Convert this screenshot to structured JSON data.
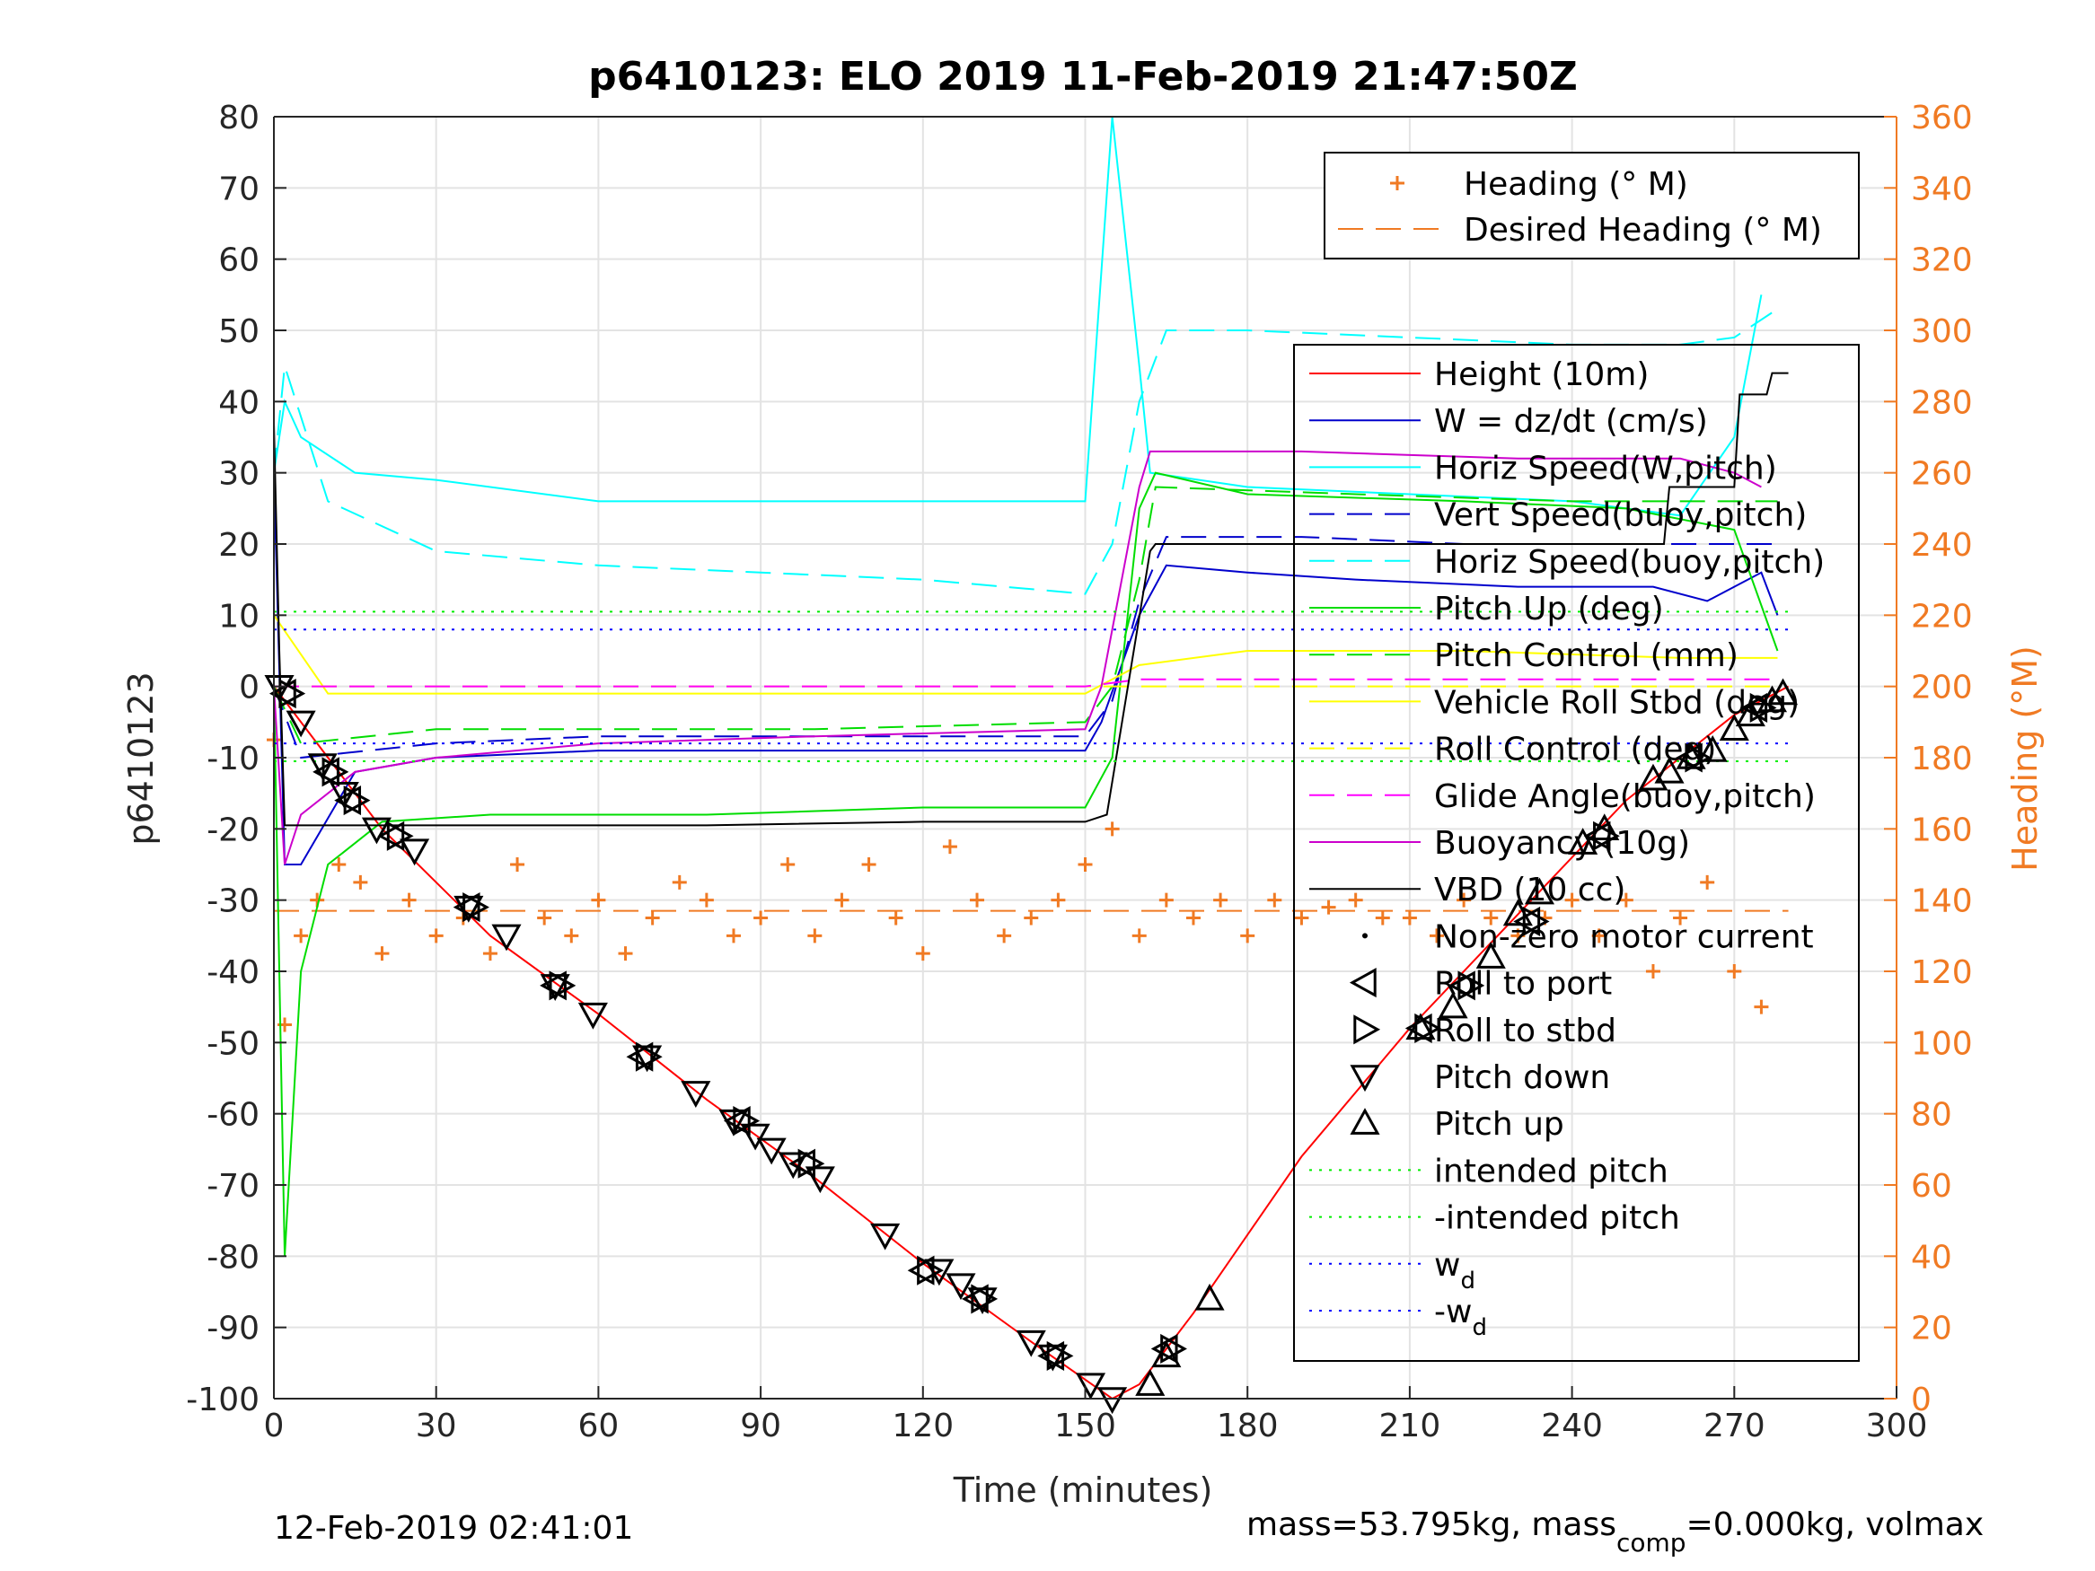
{
  "chart_data": {
    "type": "line",
    "title": "p6410123: ELO 2019 11-Feb-2019 21:47:50Z",
    "xlabel": "Time (minutes)",
    "ylabel": "p6410123",
    "y2label": "Heading (°M)",
    "xlim": [
      0,
      300
    ],
    "ylim": [
      -100,
      80
    ],
    "y2lim": [
      0,
      360
    ],
    "xticks": [
      "0",
      "30",
      "60",
      "90",
      "120",
      "150",
      "180",
      "210",
      "240",
      "270",
      "300"
    ],
    "yticks": [
      "-100",
      "-90",
      "-80",
      "-70",
      "-60",
      "-50",
      "-40",
      "-30",
      "-20",
      "-10",
      "0",
      "10",
      "20",
      "30",
      "40",
      "50",
      "60",
      "70",
      "80"
    ],
    "y2ticks": [
      "0",
      "20",
      "40",
      "60",
      "80",
      "100",
      "120",
      "140",
      "160",
      "180",
      "200",
      "220",
      "240",
      "260",
      "280",
      "300",
      "320",
      "340",
      "360"
    ],
    "grid": true,
    "colors": {
      "height": "#ff0000",
      "w": "#0000cc",
      "horiz_speed": "#00ffff",
      "pitch": "#00dd00",
      "roll": "#ffff00",
      "glide": "#ff00ff",
      "buoyancy": "#cc00cc",
      "vbd": "#000000",
      "heading": "#f07a23",
      "intended_pitch": "#00ee00",
      "wd": "#0000ff"
    },
    "series": [
      {
        "name": "Height (10m)",
        "x": [
          0,
          20,
          40,
          60,
          80,
          100,
          120,
          140,
          155,
          160,
          170,
          190,
          210,
          230,
          250,
          270,
          280
        ],
        "y": [
          0,
          -20,
          -35,
          -46,
          -58,
          -69,
          -81,
          -92,
          -100,
          -98,
          -88,
          -66,
          -48,
          -32,
          -16,
          -4,
          0
        ]
      },
      {
        "name": "W = dz/dt (cm/s)",
        "x": [
          0,
          2,
          5,
          15,
          30,
          60,
          90,
          120,
          150,
          153,
          160,
          165,
          180,
          200,
          230,
          255,
          265,
          275,
          278
        ],
        "y": [
          30,
          -25,
          -25,
          -12,
          -10,
          -9,
          -9,
          -9,
          -9,
          -5,
          10,
          17,
          16,
          15,
          14,
          14,
          12,
          16,
          10
        ]
      },
      {
        "name": "Horiz Speed(W,pitch)",
        "x": [
          0,
          2,
          5,
          15,
          30,
          60,
          90,
          120,
          150,
          155,
          160,
          162,
          180,
          210,
          240,
          260,
          270,
          275
        ],
        "y": [
          30,
          40,
          35,
          30,
          29,
          26,
          26,
          26,
          26,
          80,
          45,
          30,
          28,
          27,
          26,
          24,
          35,
          55
        ]
      },
      {
        "name": "Vert Speed(buoy,pitch)",
        "x": [
          0,
          5,
          30,
          60,
          90,
          120,
          150,
          155,
          160,
          165,
          190,
          220,
          250,
          270,
          278
        ],
        "y": [
          0,
          -10,
          -8,
          -7,
          -7,
          -7,
          -7,
          -2,
          12,
          21,
          21,
          20,
          20,
          20,
          20
        ]
      },
      {
        "name": "Horiz Speed(buoy,pitch)",
        "x": [
          0,
          2,
          10,
          30,
          60,
          90,
          120,
          150,
          155,
          160,
          165,
          180,
          210,
          240,
          260,
          270,
          278
        ],
        "y": [
          30,
          45,
          26,
          19,
          17,
          16,
          15,
          13,
          20,
          40,
          50,
          50,
          49,
          48,
          48,
          49,
          53
        ]
      },
      {
        "name": "Pitch Up (deg)",
        "x": [
          0,
          2,
          5,
          10,
          20,
          40,
          80,
          120,
          150,
          155,
          160,
          163,
          180,
          220,
          250,
          270,
          278
        ],
        "y": [
          0,
          -80,
          -40,
          -25,
          -19,
          -18,
          -18,
          -17,
          -17,
          -10,
          25,
          30,
          27,
          26,
          25,
          22,
          5
        ]
      },
      {
        "name": "Pitch Control (mm)",
        "x": [
          0,
          5,
          30,
          60,
          100,
          150,
          155,
          160,
          163,
          200,
          240,
          270,
          278
        ],
        "y": [
          0,
          -8,
          -6,
          -6,
          -6,
          -5,
          0,
          15,
          28,
          27,
          26,
          26,
          26
        ]
      },
      {
        "name": "Vehicle Roll Stbd (deg)",
        "x": [
          0,
          10,
          50,
          100,
          150,
          160,
          180,
          220,
          260,
          278
        ],
        "y": [
          10,
          -1,
          -1,
          -1,
          -1,
          3,
          5,
          5,
          4,
          4
        ]
      },
      {
        "name": "Roll Control (deg)",
        "x": [
          0,
          278
        ],
        "y": [
          0,
          0
        ]
      },
      {
        "name": "Glide Angle(buoy,pitch)",
        "x": [
          0,
          5,
          50,
          100,
          150,
          160,
          200,
          250,
          278
        ],
        "y": [
          0,
          0,
          0,
          0,
          0,
          1,
          1,
          1,
          1
        ]
      },
      {
        "name": "Buoyancy (10g)",
        "x": [
          0,
          2,
          5,
          15,
          30,
          60,
          100,
          150,
          153,
          160,
          162,
          190,
          230,
          260,
          270,
          275
        ],
        "y": [
          0,
          -25,
          -18,
          -12,
          -10,
          -8,
          -7,
          -6,
          0,
          28,
          33,
          33,
          32,
          32,
          30,
          28
        ]
      },
      {
        "name": "VBD (10 cc)",
        "x": [
          0,
          1,
          2,
          40,
          80,
          120,
          150,
          154,
          162,
          163,
          200,
          240,
          257,
          258,
          270,
          271,
          276,
          277,
          280
        ],
        "y": [
          37,
          5,
          -19.5,
          -19.5,
          -19.5,
          -19,
          -19,
          -18,
          19,
          20,
          20,
          20,
          20,
          28,
          28,
          41,
          41,
          44,
          44
        ]
      },
      {
        "name": "Non-zero motor current",
        "x": [],
        "y": []
      },
      {
        "name": "Roll to port",
        "x": [
          2,
          10,
          14,
          22,
          36,
          52,
          68,
          86,
          98,
          120,
          130,
          144,
          165,
          212,
          220,
          232,
          245,
          262,
          274
        ],
        "y": [
          -1,
          -12,
          -16,
          -21,
          -31,
          -42,
          -52,
          -61,
          -67,
          -82,
          -86,
          -94,
          -93,
          -48,
          -42,
          -33,
          -21,
          -10,
          -3
        ]
      },
      {
        "name": "Roll to stbd",
        "x": [
          3,
          11,
          15,
          23,
          37,
          53,
          69,
          87,
          99,
          121,
          131,
          145,
          166,
          213,
          221,
          233,
          246,
          263,
          275
        ],
        "y": [
          -1,
          -12,
          -16,
          -21,
          -31,
          -42,
          -52,
          -61,
          -67,
          -82,
          -86,
          -94,
          -93,
          -48,
          -42,
          -33,
          -21,
          -10,
          -3
        ]
      },
      {
        "name": "Pitch down",
        "x": [
          1,
          5,
          9,
          13,
          19,
          26,
          36,
          43,
          52,
          59,
          69,
          78,
          85,
          89,
          92,
          96,
          101,
          113,
          123,
          127,
          131,
          140,
          144,
          151,
          155
        ],
        "y": [
          0,
          -5,
          -11,
          -15,
          -20,
          -23,
          -31,
          -35,
          -42,
          -46,
          -52,
          -57,
          -61,
          -63,
          -65,
          -67,
          -69,
          -77,
          -82,
          -84,
          -86,
          -92,
          -94,
          -98,
          -100
        ]
      },
      {
        "name": "Pitch up",
        "x": [
          162,
          165,
          173,
          212,
          218,
          225,
          230,
          234,
          242,
          246,
          255,
          258,
          262,
          266,
          270,
          273,
          277,
          279
        ],
        "y": [
          -98,
          -94,
          -86,
          -48,
          -45,
          -38,
          -32,
          -29,
          -22,
          -20,
          -13,
          -12,
          -10,
          -9,
          -6,
          -4,
          -2,
          -1
        ]
      },
      {
        "name": "intended pitch",
        "x": [
          0,
          280
        ],
        "y": [
          10.5,
          10.5
        ]
      },
      {
        "name": "-intended pitch",
        "x": [
          0,
          280
        ],
        "y": [
          -10.5,
          -10.5
        ]
      },
      {
        "name": "w_d",
        "x": [
          0,
          280
        ],
        "y": [
          8,
          8
        ]
      },
      {
        "name": "-w_d",
        "x": [
          0,
          280
        ],
        "y": [
          -8,
          -8
        ]
      }
    ],
    "heading_series": [
      {
        "name": "Heading (° M)",
        "x": [
          0,
          2,
          5,
          8,
          12,
          16,
          20,
          25,
          30,
          35,
          40,
          45,
          50,
          55,
          60,
          65,
          70,
          75,
          80,
          85,
          90,
          95,
          100,
          105,
          110,
          115,
          120,
          125,
          130,
          135,
          140,
          145,
          150,
          155,
          160,
          165,
          170,
          175,
          180,
          185,
          190,
          195,
          200,
          205,
          210,
          215,
          220,
          225,
          230,
          235,
          240,
          245,
          250,
          255,
          260,
          265,
          270,
          275
        ],
        "y": [
          185,
          105,
          130,
          140,
          150,
          145,
          125,
          140,
          130,
          135,
          125,
          150,
          135,
          130,
          140,
          125,
          135,
          145,
          140,
          130,
          135,
          150,
          130,
          140,
          150,
          135,
          125,
          155,
          140,
          130,
          135,
          140,
          150,
          160,
          130,
          140,
          135,
          140,
          130,
          140,
          135,
          138,
          140,
          135,
          135,
          130,
          140,
          135,
          130,
          135,
          140,
          130,
          140,
          120,
          135,
          145,
          120,
          110
        ]
      },
      {
        "name": "Desired Heading (° M)",
        "x": [
          0,
          280
        ],
        "y": [
          137,
          137
        ]
      }
    ],
    "legend_top": [
      "Heading (° M)",
      "Desired Heading (° M)"
    ],
    "legend_main": [
      "Height (10m)",
      "W = dz/dt (cm/s)",
      "Horiz Speed(W,pitch)",
      "Vert Speed(buoy,pitch)",
      "Horiz Speed(buoy,pitch)",
      "Pitch Up (deg)",
      "Pitch Control (mm)",
      "Vehicle Roll Stbd (deg)",
      "Roll Control (deg)",
      "Glide Angle(buoy,pitch)",
      "Buoyancy (10g)",
      "VBD (10 cc)",
      "Non-zero motor current",
      "Roll to port",
      "Roll to stbd",
      "Pitch down",
      "Pitch up",
      "intended pitch",
      "-intended pitch",
      "w_d",
      "-w_d"
    ],
    "legend_main_parts": {
      "wd_base": "w",
      "wd_sub": "d",
      "nwd_base": "-w",
      "nwd_sub": "d"
    },
    "legend_placement": "top-right"
  },
  "footer": {
    "timestamp": "12-Feb-2019 02:41:01",
    "mass_text_a": "mass=53.795kg, mass",
    "mass_sub": "comp",
    "mass_text_b": "=0.000kg, volmax"
  }
}
